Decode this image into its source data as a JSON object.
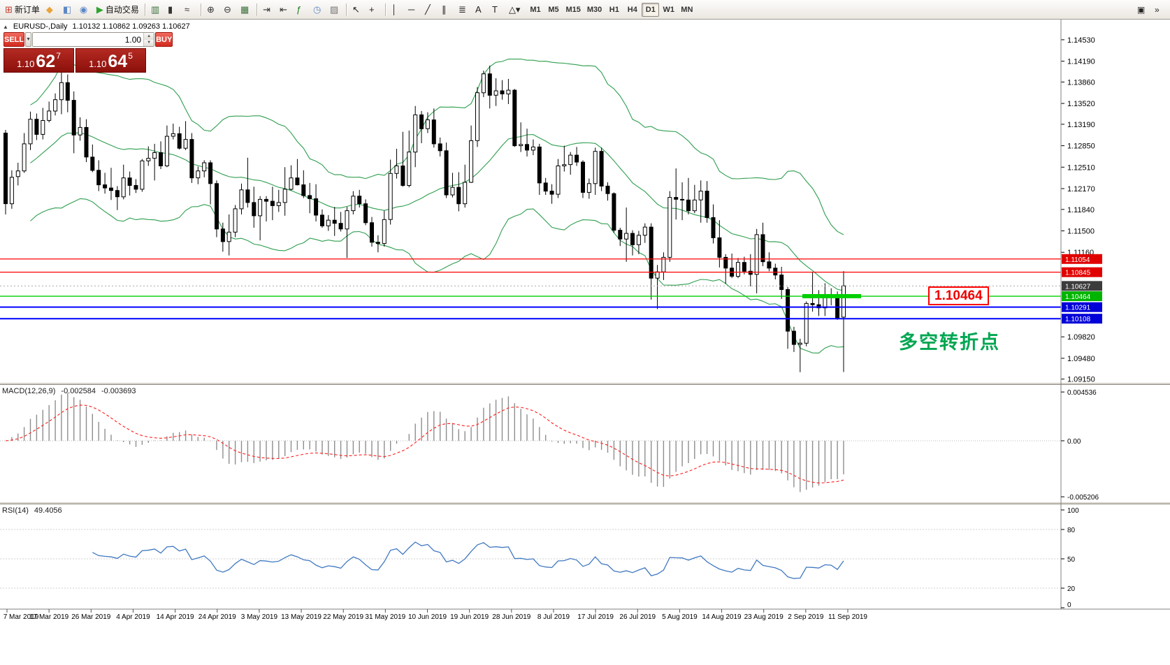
{
  "toolbar": {
    "items": [
      {
        "name": "new-order-button",
        "glyph": "⊞",
        "color": "#c23b2e",
        "label": "新订单"
      },
      {
        "name": "market-watch-button",
        "glyph": "◆",
        "color": "#e8a33d"
      },
      {
        "name": "data-window-button",
        "glyph": "◧",
        "color": "#5b87c5"
      },
      {
        "name": "navigator-button",
        "glyph": "◉",
        "color": "#5b87c5"
      },
      {
        "name": "autotrading-button",
        "glyph": "▶",
        "color": "#2fa32f",
        "label": "自动交易"
      },
      {
        "type": "sep"
      },
      {
        "name": "bar-chart-button",
        "glyph": "▥",
        "color": "#3a6e3a"
      },
      {
        "name": "candlestick-chart-button",
        "glyph": "▮",
        "color": "#333333"
      },
      {
        "name": "line-chart-button",
        "glyph": "≈",
        "color": "#333333"
      },
      {
        "type": "sep"
      },
      {
        "name": "zoom-in-button",
        "glyph": "⊕",
        "color": "#333333"
      },
      {
        "name": "zoom-out-button",
        "glyph": "⊖",
        "color": "#333333"
      },
      {
        "name": "templates-button",
        "glyph": "▦",
        "color": "#3a6e3a"
      },
      {
        "type": "sep"
      },
      {
        "name": "auto-scroll-button",
        "glyph": "⇥",
        "color": "#333333"
      },
      {
        "name": "chart-shift-button",
        "glyph": "⇤",
        "color": "#333333"
      },
      {
        "name": "indicators-button",
        "glyph": "ƒ",
        "color": "#1f7a1f"
      },
      {
        "name": "periods-button",
        "glyph": "◷",
        "color": "#5b87c5"
      },
      {
        "name": "template-apply-button",
        "glyph": "▨",
        "color": "#777777"
      },
      {
        "type": "sep"
      },
      {
        "name": "cursor-button",
        "glyph": "↖",
        "color": "#222222"
      },
      {
        "name": "crosshair-button",
        "glyph": "+",
        "color": "#222222"
      },
      {
        "type": "sep"
      },
      {
        "name": "vertical-line-button",
        "glyph": "│",
        "color": "#222222"
      },
      {
        "name": "horizontal-line-button",
        "glyph": "─",
        "color": "#222222"
      },
      {
        "name": "trendline-button",
        "glyph": "╱",
        "color": "#222222"
      },
      {
        "name": "channel-button",
        "glyph": "∥",
        "color": "#222222"
      },
      {
        "name": "fibonacci-button",
        "glyph": "≣",
        "color": "#222222"
      },
      {
        "name": "text-button",
        "glyph": "A",
        "color": "#222222"
      },
      {
        "name": "label-button",
        "glyph": "T",
        "color": "#222222"
      },
      {
        "name": "shapes-dropdown-button",
        "glyph": "△▾",
        "color": "#222222"
      }
    ],
    "timeframes": [
      "M1",
      "M5",
      "M15",
      "M30",
      "H1",
      "H4",
      "D1",
      "W1",
      "MN"
    ],
    "active_timeframe": "D1",
    "right_icons": [
      {
        "name": "window-arrange-button",
        "glyph": "▣"
      },
      {
        "name": "toolbar-customize-button",
        "glyph": "»"
      }
    ]
  },
  "chart": {
    "header": {
      "collapse_glyph": "▲",
      "symbol": "EURUSD-,Daily",
      "ohlc": "1.10132 1.10862 1.09263 1.10627"
    },
    "one_click": {
      "sell_label": "SELL",
      "buy_label": "BUY",
      "volume": "1.00",
      "dropdown_glyph": "▼",
      "spinner_up_glyph": "▲",
      "spinner_down_glyph": "▼",
      "sell_price": {
        "prefix": "1.10",
        "big": "62",
        "sup": "7"
      },
      "buy_price": {
        "prefix": "1.10",
        "big": "64",
        "sup": "5"
      }
    }
  },
  "annotations": {
    "support_price": "1.10464",
    "turning_point": "多空转折点"
  },
  "chart_data": {
    "type": "candlestick",
    "symbol": "EURUSD",
    "period": "Daily",
    "last_ohlc": {
      "open": 1.10132,
      "high": 1.10862,
      "low": 1.09263,
      "close": 1.10627
    },
    "y_axis": {
      "min": 1.0915,
      "max": 1.1453
    },
    "y_axis_labels": [
      "1.14530",
      "1.14190",
      "1.13860",
      "1.13520",
      "1.13190",
      "1.12850",
      "1.12510",
      "1.12170",
      "1.11840",
      "1.11500",
      "1.11160",
      "1.09820",
      "1.09480",
      "1.09150"
    ],
    "price_tags": [
      {
        "value": "1.11054",
        "color": "#e00000"
      },
      {
        "value": "1.10845",
        "color": "#e00000"
      },
      {
        "value": "1.10627",
        "color": "#3c3c3c"
      },
      {
        "value": "1.10464",
        "color": "#00b400"
      },
      {
        "value": "1.10291",
        "color": "#0000d8"
      },
      {
        "value": "1.10108",
        "color": "#0000d8"
      }
    ],
    "hlines": [
      {
        "price": 1.11054,
        "color": "#ff0000",
        "w": 1.2
      },
      {
        "price": 1.10845,
        "color": "#ff0000",
        "w": 1.2
      },
      {
        "price": 1.10464,
        "color": "#00d000",
        "w": 1.4
      },
      {
        "price": 1.10291,
        "color": "#0000ff",
        "w": 2
      },
      {
        "price": 1.10108,
        "color": "#0000ff",
        "w": 2
      }
    ],
    "highlight_segment": {
      "price": 1.10464,
      "color": "#00d000"
    },
    "current_price": 1.10627,
    "bollinger": {
      "period": 20,
      "deviation": 2,
      "color": "#2f9e4f"
    },
    "macd": {
      "label": "MACD(12,26,9)",
      "value_main": "-0.002584",
      "value_signal": "-0.003693",
      "axis_labels": [
        "0.004536",
        "0.00",
        "-0.005206"
      ]
    },
    "rsi": {
      "label": "RSI(14)",
      "value": "49.4056",
      "axis_labels": [
        "100",
        "80",
        "50",
        "20",
        "0"
      ],
      "levels": [
        80,
        50,
        20
      ]
    },
    "date_ticks": [
      "7 Mar 2019",
      "17 Mar 2019",
      "26 Mar 2019",
      "4 Apr 2019",
      "14 Apr 2019",
      "24 Apr 2019",
      "3 May 2019",
      "13 May 2019",
      "22 May 2019",
      "31 May 2019",
      "10 Jun 2019",
      "19 Jun 2019",
      "28 Jun 2019",
      "8 Jul 2019",
      "17 Jul 2019",
      "26 Jul 2019",
      "5 Aug 2019",
      "14 Aug 2019",
      "23 Aug 2019",
      "2 Sep 2019",
      "11 Sep 2019"
    ],
    "candles": [
      [
        1.1305,
        1.131,
        1.1176,
        1.1193
      ],
      [
        1.1193,
        1.1246,
        1.1185,
        1.1235
      ],
      [
        1.1236,
        1.1258,
        1.1222,
        1.1245
      ],
      [
        1.1245,
        1.1305,
        1.1242,
        1.1288
      ],
      [
        1.1288,
        1.1339,
        1.1278,
        1.1327
      ],
      [
        1.1327,
        1.1336,
        1.1294,
        1.1303
      ],
      [
        1.1303,
        1.1345,
        1.1295,
        1.1325
      ],
      [
        1.1325,
        1.1355,
        1.1322,
        1.134
      ],
      [
        1.134,
        1.1368,
        1.1333,
        1.1358
      ],
      [
        1.1358,
        1.1402,
        1.1335,
        1.1385
      ],
      [
        1.1385,
        1.1398,
        1.1338,
        1.1357
      ],
      [
        1.1357,
        1.1371,
        1.1273,
        1.1302
      ],
      [
        1.1302,
        1.133,
        1.1293,
        1.1314
      ],
      [
        1.1314,
        1.1327,
        1.1259,
        1.1267
      ],
      [
        1.1267,
        1.1287,
        1.1243,
        1.1246
      ],
      [
        1.1246,
        1.1262,
        1.1213,
        1.1223
      ],
      [
        1.1223,
        1.1242,
        1.1209,
        1.1218
      ],
      [
        1.1218,
        1.125,
        1.1199,
        1.1214
      ],
      [
        1.1214,
        1.1221,
        1.1183,
        1.1204
      ],
      [
        1.1204,
        1.1255,
        1.12,
        1.1234
      ],
      [
        1.1234,
        1.1244,
        1.1206,
        1.1222
      ],
      [
        1.1222,
        1.1232,
        1.121,
        1.1216
      ],
      [
        1.1216,
        1.1264,
        1.1212,
        1.1261
      ],
      [
        1.1261,
        1.1284,
        1.1253,
        1.1265
      ],
      [
        1.1265,
        1.1288,
        1.123,
        1.1274
      ],
      [
        1.1274,
        1.1292,
        1.1248,
        1.1253
      ],
      [
        1.1253,
        1.1317,
        1.1251,
        1.13
      ],
      [
        1.13,
        1.132,
        1.1295,
        1.1304
      ],
      [
        1.1304,
        1.1315,
        1.1279,
        1.1281
      ],
      [
        1.1281,
        1.1324,
        1.1278,
        1.1295
      ],
      [
        1.1295,
        1.1305,
        1.1226,
        1.1234
      ],
      [
        1.1234,
        1.1252,
        1.1224,
        1.1245
      ],
      [
        1.1245,
        1.1262,
        1.1235,
        1.1258
      ],
      [
        1.1258,
        1.1262,
        1.1192,
        1.1225
      ],
      [
        1.1225,
        1.123,
        1.114,
        1.1153
      ],
      [
        1.1153,
        1.1163,
        1.1117,
        1.1133
      ],
      [
        1.1133,
        1.1176,
        1.1111,
        1.1148
      ],
      [
        1.1148,
        1.1191,
        1.114,
        1.1185
      ],
      [
        1.1185,
        1.1225,
        1.1176,
        1.1215
      ],
      [
        1.1215,
        1.1266,
        1.1187,
        1.1195
      ],
      [
        1.1195,
        1.122,
        1.1155,
        1.1174
      ],
      [
        1.1174,
        1.1205,
        1.1135,
        1.12
      ],
      [
        1.12,
        1.1205,
        1.1165,
        1.1197
      ],
      [
        1.1197,
        1.122,
        1.1167,
        1.119
      ],
      [
        1.119,
        1.1215,
        1.118,
        1.1195
      ],
      [
        1.1195,
        1.1251,
        1.1174,
        1.1216
      ],
      [
        1.1216,
        1.1254,
        1.1214,
        1.1234
      ],
      [
        1.1234,
        1.1264,
        1.1222,
        1.1223
      ],
      [
        1.1223,
        1.1246,
        1.1202,
        1.1206
      ],
      [
        1.1206,
        1.1226,
        1.1178,
        1.1201
      ],
      [
        1.1201,
        1.1224,
        1.1165,
        1.1175
      ],
      [
        1.1175,
        1.1184,
        1.1155,
        1.1158
      ],
      [
        1.1158,
        1.1175,
        1.115,
        1.1167
      ],
      [
        1.1167,
        1.1188,
        1.1142,
        1.1162
      ],
      [
        1.1162,
        1.118,
        1.1149,
        1.1153
      ],
      [
        1.1153,
        1.1188,
        1.1107,
        1.1182
      ],
      [
        1.1182,
        1.1213,
        1.1176,
        1.1205
      ],
      [
        1.1205,
        1.1215,
        1.1187,
        1.1193
      ],
      [
        1.1193,
        1.12,
        1.1159,
        1.1163
      ],
      [
        1.1163,
        1.1172,
        1.1125,
        1.1132
      ],
      [
        1.1132,
        1.1143,
        1.1116,
        1.113
      ],
      [
        1.113,
        1.1182,
        1.1125,
        1.1168
      ],
      [
        1.1168,
        1.1263,
        1.116,
        1.1241
      ],
      [
        1.1241,
        1.128,
        1.1233,
        1.1253
      ],
      [
        1.1253,
        1.1307,
        1.122,
        1.1222
      ],
      [
        1.1222,
        1.1309,
        1.1219,
        1.1275
      ],
      [
        1.1275,
        1.1348,
        1.1251,
        1.1334
      ],
      [
        1.1334,
        1.134,
        1.1289,
        1.1312
      ],
      [
        1.1312,
        1.1338,
        1.1305,
        1.1326
      ],
      [
        1.1326,
        1.1344,
        1.1282,
        1.1288
      ],
      [
        1.1288,
        1.1298,
        1.1268,
        1.1277
      ],
      [
        1.1277,
        1.129,
        1.1202,
        1.1207
      ],
      [
        1.1207,
        1.1242,
        1.1203,
        1.1219
      ],
      [
        1.1219,
        1.1243,
        1.1181,
        1.1193
      ],
      [
        1.1193,
        1.1255,
        1.1187,
        1.1227
      ],
      [
        1.1227,
        1.1317,
        1.1226,
        1.1293
      ],
      [
        1.1293,
        1.1378,
        1.1283,
        1.1369
      ],
      [
        1.1369,
        1.1404,
        1.1362,
        1.1399
      ],
      [
        1.1399,
        1.1412,
        1.1344,
        1.1365
      ],
      [
        1.1365,
        1.1392,
        1.1348,
        1.1372
      ],
      [
        1.1372,
        1.1389,
        1.1358,
        1.1367
      ],
      [
        1.1367,
        1.1391,
        1.1351,
        1.1373
      ],
      [
        1.1373,
        1.1375,
        1.1283,
        1.1285
      ],
      [
        1.1285,
        1.1322,
        1.1275,
        1.1287
      ],
      [
        1.1287,
        1.1312,
        1.1268,
        1.1278
      ],
      [
        1.1278,
        1.1295,
        1.127,
        1.1283
      ],
      [
        1.1283,
        1.1288,
        1.1207,
        1.1226
      ],
      [
        1.1226,
        1.1234,
        1.1207,
        1.1213
      ],
      [
        1.1213,
        1.1224,
        1.1193,
        1.1208
      ],
      [
        1.1208,
        1.1264,
        1.1202,
        1.1253
      ],
      [
        1.1253,
        1.1285,
        1.1244,
        1.1255
      ],
      [
        1.1255,
        1.1275,
        1.1239,
        1.127
      ],
      [
        1.127,
        1.1283,
        1.1253,
        1.1259
      ],
      [
        1.1259,
        1.1262,
        1.1202,
        1.1211
      ],
      [
        1.1211,
        1.1233,
        1.1201,
        1.1225
      ],
      [
        1.1225,
        1.1282,
        1.1207,
        1.1276
      ],
      [
        1.1276,
        1.1282,
        1.1213,
        1.1221
      ],
      [
        1.1221,
        1.1227,
        1.1198,
        1.1209
      ],
      [
        1.1209,
        1.1211,
        1.1147,
        1.1151
      ],
      [
        1.1151,
        1.1155,
        1.1126,
        1.1137
      ],
      [
        1.1137,
        1.1187,
        1.1101,
        1.1146
      ],
      [
        1.1146,
        1.1151,
        1.1111,
        1.1128
      ],
      [
        1.1128,
        1.115,
        1.1113,
        1.1143
      ],
      [
        1.1143,
        1.1162,
        1.1131,
        1.1156
      ],
      [
        1.1156,
        1.1162,
        1.1041,
        1.1075
      ],
      [
        1.1075,
        1.1096,
        1.1026,
        1.1085
      ],
      [
        1.1085,
        1.1116,
        1.1072,
        1.1108
      ],
      [
        1.1108,
        1.1213,
        1.1101,
        1.1203
      ],
      [
        1.1203,
        1.1249,
        1.1168,
        1.12
      ],
      [
        1.12,
        1.1227,
        1.1167,
        1.1199
      ],
      [
        1.1199,
        1.1234,
        1.1176,
        1.1182
      ],
      [
        1.1182,
        1.1223,
        1.1178,
        1.1199
      ],
      [
        1.1199,
        1.123,
        1.1163,
        1.1213
      ],
      [
        1.1213,
        1.1229,
        1.1163,
        1.1171
      ],
      [
        1.1171,
        1.1192,
        1.113,
        1.1139
      ],
      [
        1.1139,
        1.1167,
        1.1092,
        1.1108
      ],
      [
        1.1108,
        1.1113,
        1.1066,
        1.1091
      ],
      [
        1.1091,
        1.1114,
        1.1075,
        1.1078
      ],
      [
        1.1078,
        1.1107,
        1.1075,
        1.11
      ],
      [
        1.11,
        1.1109,
        1.1081,
        1.1086
      ],
      [
        1.1086,
        1.1113,
        1.1062,
        1.1081
      ],
      [
        1.1081,
        1.1153,
        1.1051,
        1.1144
      ],
      [
        1.1144,
        1.1163,
        1.1094,
        1.1101
      ],
      [
        1.1101,
        1.1116,
        1.1086,
        1.1091
      ],
      [
        1.1091,
        1.1098,
        1.1073,
        1.108
      ],
      [
        1.108,
        1.1093,
        1.1042,
        1.1057
      ],
      [
        1.1057,
        1.1061,
        1.0963,
        1.0991
      ],
      [
        1.0991,
        1.0998,
        1.0958,
        1.097
      ],
      [
        1.097,
        1.0979,
        1.0926,
        1.0972
      ],
      [
        1.0972,
        1.1038,
        1.0967,
        1.1035
      ],
      [
        1.1035,
        1.1085,
        1.1022,
        1.1033
      ],
      [
        1.1033,
        1.1056,
        1.1015,
        1.1028
      ],
      [
        1.1028,
        1.1067,
        1.1015,
        1.1047
      ],
      [
        1.1047,
        1.1059,
        1.1032,
        1.1044
      ],
      [
        1.1044,
        1.1054,
        1.1009,
        1.1011
      ],
      [
        1.10132,
        1.10862,
        1.09263,
        1.10627
      ]
    ]
  }
}
